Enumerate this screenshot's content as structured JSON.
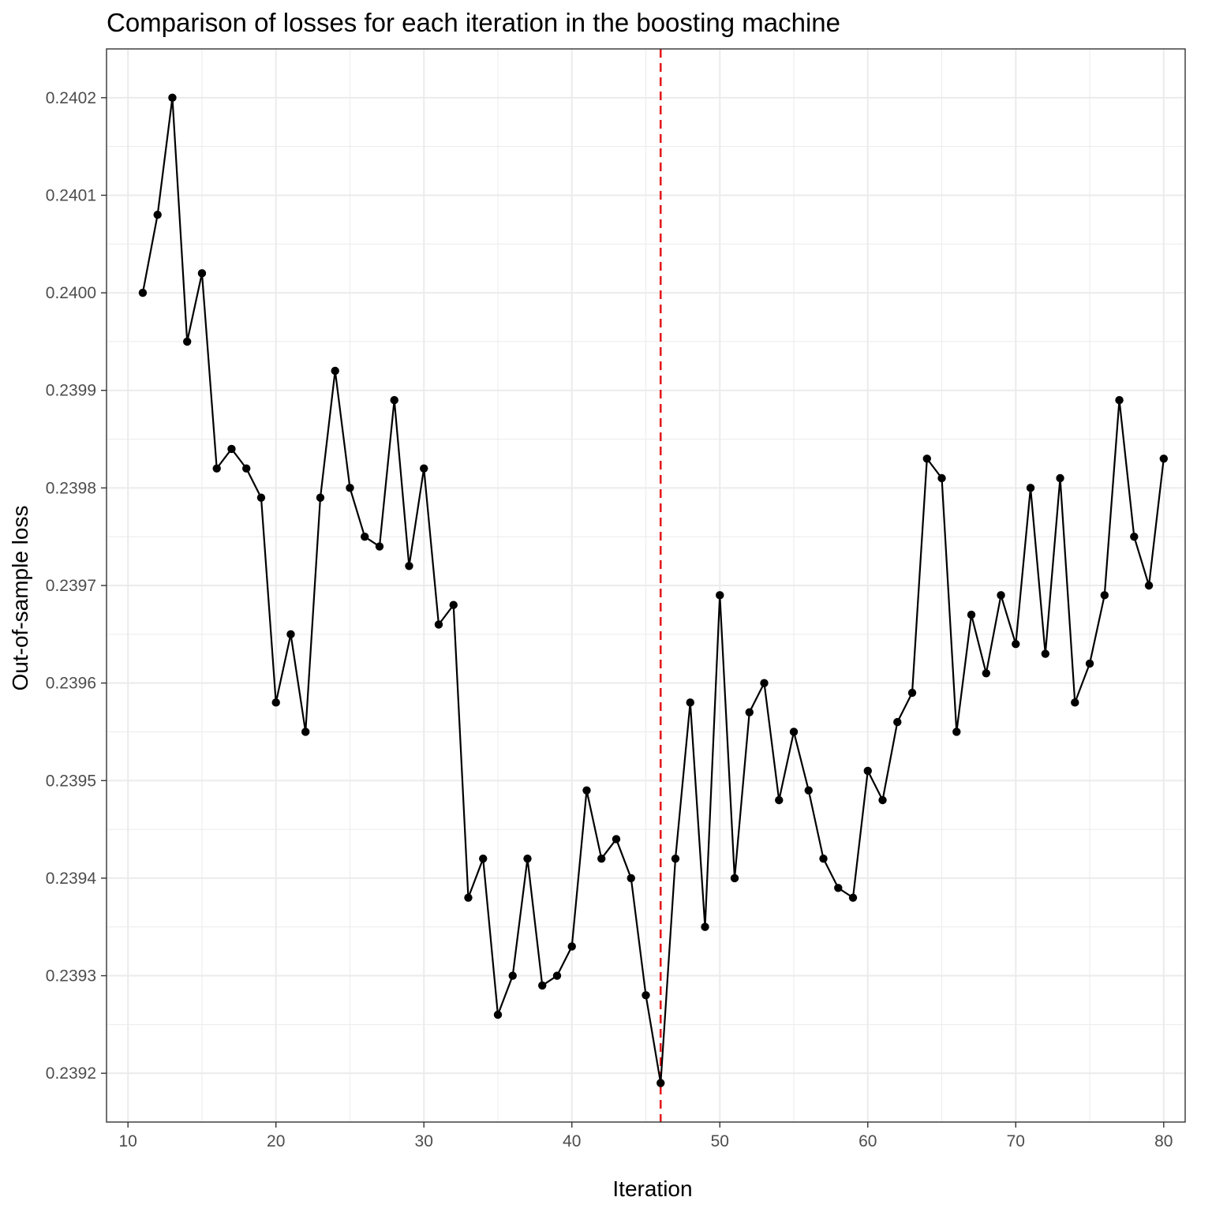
{
  "chart_data": {
    "type": "line",
    "title": "Comparison of losses for each iteration in the boosting machine",
    "xlabel": "Iteration",
    "ylabel": "Out-of-sample loss",
    "xlim": [
      8.55,
      81.45
    ],
    "ylim": [
      0.23915,
      0.24025
    ],
    "x_ticks": [
      10,
      20,
      30,
      40,
      50,
      60,
      70,
      80
    ],
    "x_tick_labels": [
      "10",
      "20",
      "30",
      "40",
      "50",
      "60",
      "70",
      "80"
    ],
    "y_ticks": [
      0.2392,
      0.2393,
      0.2394,
      0.2395,
      0.2396,
      0.2397,
      0.2398,
      0.2399,
      0.24,
      0.2401,
      0.2402
    ],
    "y_tick_labels": [
      "0.2392",
      "0.2393",
      "0.2394",
      "0.2395",
      "0.2396",
      "0.2397",
      "0.2398",
      "0.2399",
      "0.2400",
      "0.2401",
      "0.2402"
    ],
    "grid": true,
    "reference_line": {
      "x": 46,
      "style": "dashed",
      "color": "#e41a1c"
    },
    "line_color": "#000000",
    "series": [
      {
        "x": [
          11,
          12,
          13,
          14,
          15,
          16,
          17,
          18,
          19,
          20,
          21,
          22,
          23,
          24,
          25,
          26,
          27,
          28,
          29,
          30,
          31,
          32,
          33,
          34,
          35,
          36,
          37,
          38,
          39,
          40,
          41,
          42,
          43,
          44,
          45,
          46,
          47,
          48,
          49,
          50,
          51,
          52,
          53,
          54,
          55,
          56,
          57,
          58,
          59,
          60,
          61,
          62,
          63,
          64,
          65,
          66,
          67,
          68,
          69,
          70,
          71,
          72,
          73,
          74,
          75,
          76,
          77,
          78,
          79,
          80
        ],
        "y": [
          0.24,
          0.24008,
          0.2402,
          0.23995,
          0.24002,
          0.23982,
          0.23984,
          0.23982,
          0.23979,
          0.23958,
          0.23965,
          0.23955,
          0.23979,
          0.23992,
          0.2398,
          0.23975,
          0.23974,
          0.23989,
          0.23972,
          0.23982,
          0.23966,
          0.23968,
          0.23938,
          0.23942,
          0.23926,
          0.2393,
          0.23942,
          0.23929,
          0.2393,
          0.23933,
          0.23949,
          0.23942,
          0.23944,
          0.2394,
          0.23928,
          0.23919,
          0.23942,
          0.23958,
          0.23935,
          0.23969,
          0.2394,
          0.23957,
          0.2396,
          0.23948,
          0.23955,
          0.23949,
          0.23942,
          0.23939,
          0.23938,
          0.23951,
          0.23948,
          0.23956,
          0.23959,
          0.23983,
          0.23981,
          0.23955,
          0.23967,
          0.23961,
          0.23969,
          0.23964,
          0.2398,
          0.23963,
          0.23981,
          0.23958,
          0.23962,
          0.23969,
          0.23989,
          0.23975,
          0.2397,
          0.23983
        ]
      }
    ]
  }
}
